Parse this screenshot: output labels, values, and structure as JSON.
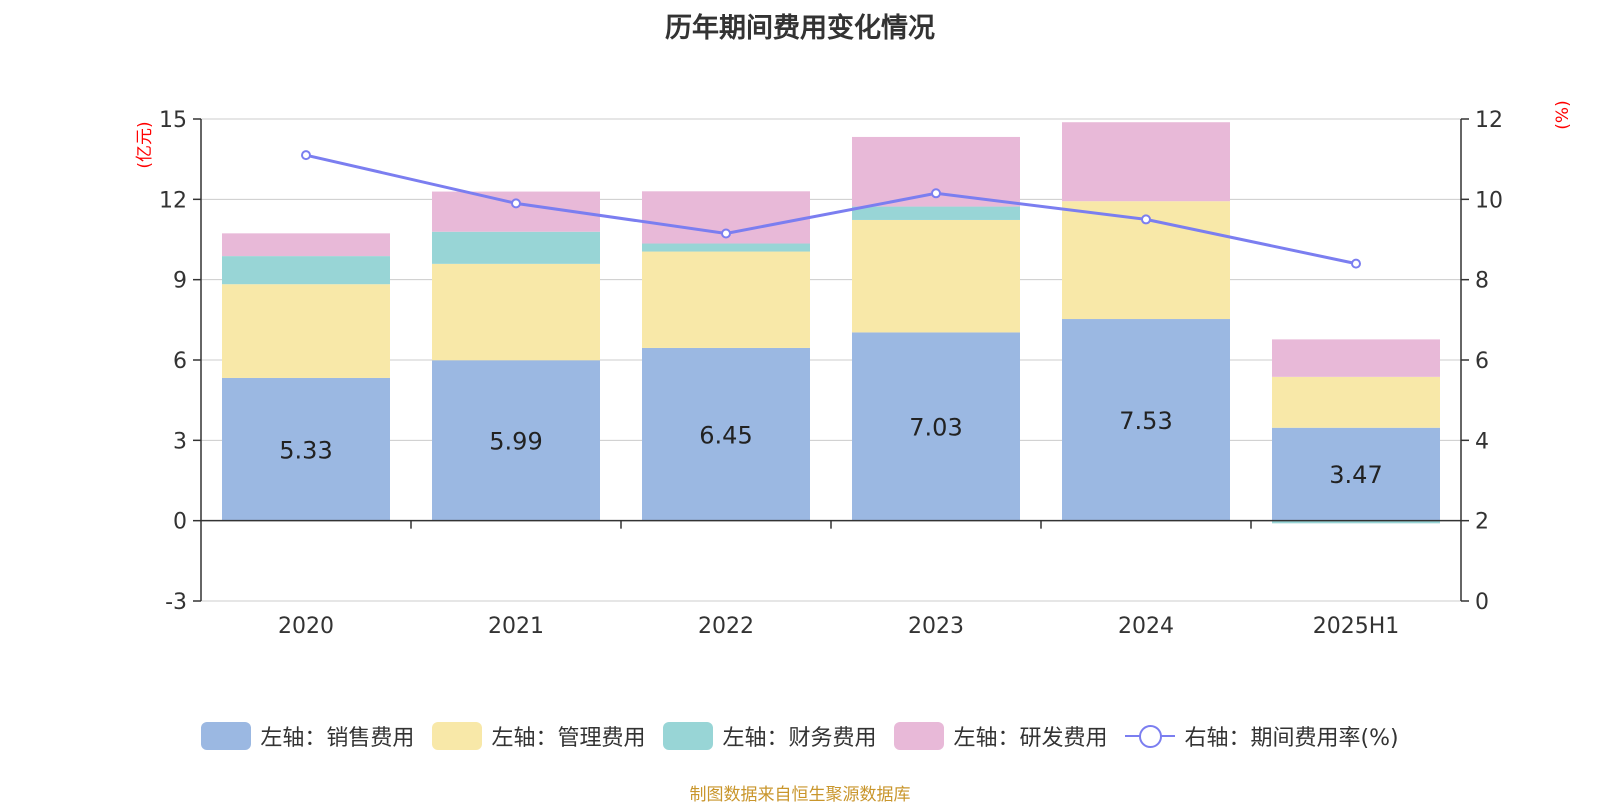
{
  "chart_data": {
    "type": "bar",
    "title": "历年期间费用变化情况",
    "categories": [
      "2020",
      "2021",
      "2022",
      "2023",
      "2024",
      "2025H1"
    ],
    "ylabel_left": "(亿元)",
    "ylabel_right": "(%)",
    "ylim_left": [
      -3,
      15
    ],
    "yticks_left": [
      "15",
      "12",
      "9",
      "6",
      "3",
      "0",
      "-3"
    ],
    "ylim_right": [
      0,
      12
    ],
    "yticks_right": [
      "12",
      "10",
      "8",
      "6",
      "4",
      "2",
      "0"
    ],
    "grid": true,
    "legend_position": "bottom",
    "series": [
      {
        "name": "左轴：销售费用",
        "type": "bar",
        "stack": true,
        "axis": "left",
        "color": "#9bb8e2",
        "values": [
          5.33,
          5.99,
          6.45,
          7.03,
          7.53,
          3.47
        ],
        "labels": [
          "5.33",
          "5.99",
          "6.45",
          "7.03",
          "7.53",
          "3.47"
        ]
      },
      {
        "name": "左轴：管理费用",
        "type": "bar",
        "stack": true,
        "axis": "left",
        "color": "#f8e8a8",
        "values": [
          3.5,
          3.6,
          3.6,
          4.2,
          4.4,
          1.9
        ]
      },
      {
        "name": "左轴：财务费用",
        "type": "bar",
        "stack": true,
        "axis": "left",
        "color": "#98d5d6",
        "values": [
          1.05,
          1.2,
          0.3,
          0.5,
          0.0,
          -0.1
        ]
      },
      {
        "name": "左轴：研发费用",
        "type": "bar",
        "stack": true,
        "axis": "left",
        "color": "#e8b9d8",
        "values": [
          0.85,
          1.5,
          1.95,
          2.6,
          2.95,
          1.4
        ]
      },
      {
        "name": "右轴：期间费用率(%)",
        "type": "line",
        "axis": "right",
        "color": "#7b7ef0",
        "values": [
          11.1,
          9.9,
          9.15,
          10.15,
          9.5,
          8.4
        ]
      }
    ]
  },
  "source": "制图数据来自恒生聚源数据库"
}
